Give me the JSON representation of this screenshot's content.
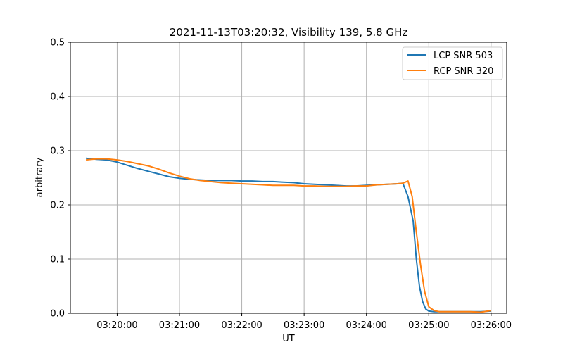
{
  "chart_data": {
    "type": "line",
    "title": "2021-11-13T03:20:32, Visibility 139, 5.8 GHz",
    "xlabel": "UT",
    "ylabel": "arbitrary",
    "xlim": [
      "03:19:15",
      "03:26:15"
    ],
    "ylim": [
      0,
      0.5
    ],
    "xticks": [
      "03:20:00",
      "03:21:00",
      "03:22:00",
      "03:23:00",
      "03:24:00",
      "03:25:00",
      "03:26:00"
    ],
    "yticks": [
      "0.0",
      "0.1",
      "0.2",
      "0.3",
      "0.4",
      "0.5"
    ],
    "grid": true,
    "legend_position": "top-right",
    "series": [
      {
        "name": "LCP SNR 503",
        "color": "#1f77b4",
        "x": [
          "03:19:30",
          "03:19:40",
          "03:19:50",
          "03:20:00",
          "03:20:10",
          "03:20:20",
          "03:20:30",
          "03:20:40",
          "03:20:50",
          "03:21:00",
          "03:21:10",
          "03:21:20",
          "03:21:30",
          "03:21:40",
          "03:21:50",
          "03:22:00",
          "03:22:10",
          "03:22:20",
          "03:22:30",
          "03:22:40",
          "03:22:50",
          "03:23:00",
          "03:23:10",
          "03:23:20",
          "03:23:30",
          "03:23:40",
          "03:23:50",
          "03:24:00",
          "03:24:10",
          "03:24:20",
          "03:24:30",
          "03:24:35",
          "03:24:40",
          "03:24:45",
          "03:24:48",
          "03:24:51",
          "03:24:54",
          "03:24:57",
          "03:25:00",
          "03:25:05",
          "03:25:10",
          "03:25:20",
          "03:25:30",
          "03:25:40",
          "03:25:50",
          "03:26:00"
        ],
        "y": [
          0.286,
          0.284,
          0.283,
          0.279,
          0.273,
          0.267,
          0.262,
          0.257,
          0.252,
          0.249,
          0.247,
          0.246,
          0.245,
          0.245,
          0.245,
          0.244,
          0.244,
          0.243,
          0.243,
          0.242,
          0.241,
          0.239,
          0.238,
          0.237,
          0.236,
          0.235,
          0.235,
          0.236,
          0.237,
          0.238,
          0.239,
          0.24,
          0.215,
          0.17,
          0.1,
          0.05,
          0.022,
          0.008,
          0.004,
          0.003,
          0.003,
          0.003,
          0.003,
          0.003,
          0.003,
          0.004
        ]
      },
      {
        "name": "RCP SNR 320",
        "color": "#ff7f0e",
        "x": [
          "03:19:30",
          "03:19:40",
          "03:19:50",
          "03:20:00",
          "03:20:10",
          "03:20:20",
          "03:20:30",
          "03:20:40",
          "03:20:50",
          "03:21:00",
          "03:21:10",
          "03:21:20",
          "03:21:30",
          "03:21:40",
          "03:21:50",
          "03:22:00",
          "03:22:10",
          "03:22:20",
          "03:22:30",
          "03:22:40",
          "03:22:50",
          "03:23:00",
          "03:23:10",
          "03:23:20",
          "03:23:30",
          "03:23:40",
          "03:23:50",
          "03:24:00",
          "03:24:10",
          "03:24:20",
          "03:24:30",
          "03:24:35",
          "03:24:40",
          "03:24:44",
          "03:24:48",
          "03:24:52",
          "03:24:56",
          "03:25:00",
          "03:25:05",
          "03:25:10",
          "03:25:20",
          "03:25:30",
          "03:25:40",
          "03:25:50",
          "03:26:00"
        ],
        "y": [
          0.283,
          0.285,
          0.285,
          0.283,
          0.28,
          0.276,
          0.272,
          0.266,
          0.259,
          0.253,
          0.248,
          0.245,
          0.243,
          0.241,
          0.24,
          0.239,
          0.238,
          0.237,
          0.236,
          0.236,
          0.236,
          0.235,
          0.235,
          0.234,
          0.234,
          0.234,
          0.235,
          0.235,
          0.237,
          0.238,
          0.239,
          0.24,
          0.244,
          0.215,
          0.15,
          0.09,
          0.04,
          0.012,
          0.005,
          0.003,
          0.003,
          0.003,
          0.003,
          0.002,
          0.005
        ]
      }
    ]
  }
}
